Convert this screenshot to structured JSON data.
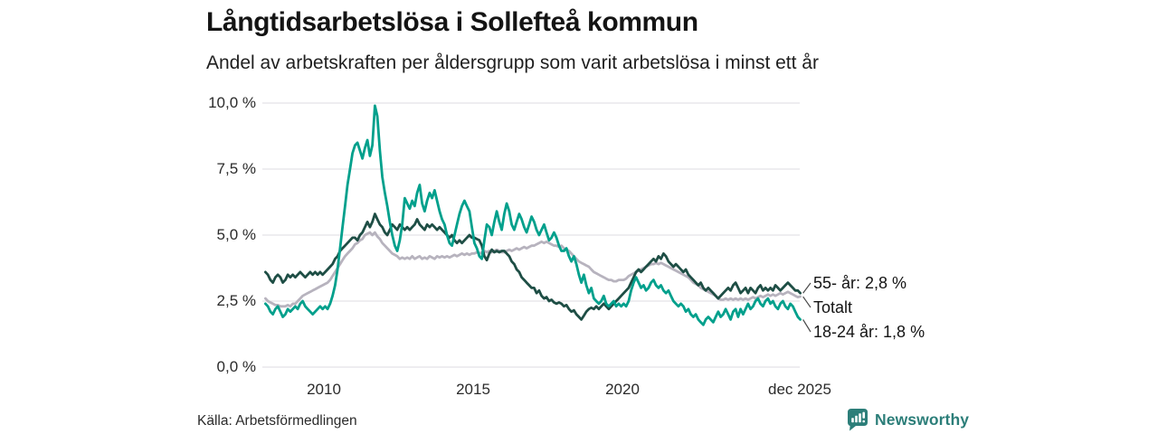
{
  "header": {
    "title": "Långtidsarbetslösa i Sollefteå kommun",
    "subtitle": "Andel av arbetskraften per åldersgrupp som varit arbetslösa i minst ett år"
  },
  "footer": {
    "source": "Källa: Arbetsförmedlingen",
    "brand": "Newsworthy"
  },
  "colors": {
    "teal": "#00a08c",
    "dark_green": "#1e4e45",
    "gray": "#b7b3be",
    "gridline": "#e4e2e6",
    "leader": "#4a4a4a",
    "brand_teal": "#2c7e79"
  },
  "chart_data": {
    "type": "line",
    "title": "Långtidsarbetslösa i Sollefteå kommun",
    "subtitle": "Andel av arbetskraften per åldersgrupp som varit arbetslösa i minst ett år",
    "unit": "%",
    "x_start": 2008.042,
    "x_step": 0.08333,
    "xlim": [
      2007.94,
      2026.0
    ],
    "ylim": [
      0,
      10
    ],
    "grid": true,
    "legend_position": "end-of-line-labels",
    "x_ticks": [
      {
        "value": 2010,
        "label": "2010"
      },
      {
        "value": 2015,
        "label": "2015"
      },
      {
        "value": 2020,
        "label": "2020"
      },
      {
        "value": 2025.917,
        "label": "dec 2025"
      }
    ],
    "y_ticks": [
      {
        "value": 10,
        "label": "10,0 %"
      },
      {
        "value": 7.5,
        "label": "7,5 %"
      },
      {
        "value": 5,
        "label": "5,0 %"
      },
      {
        "value": 2.5,
        "label": "2,5 %"
      },
      {
        "value": 0,
        "label": "0,0 %"
      }
    ],
    "series": [
      {
        "name": "Totalt",
        "color": "#b7b3be",
        "end_label": "Totalt",
        "end_value": 2.67,
        "values": [
          2.6,
          2.5,
          2.45,
          2.4,
          2.35,
          2.35,
          2.3,
          2.3,
          2.3,
          2.35,
          2.3,
          2.4,
          2.4,
          2.5,
          2.6,
          2.7,
          2.75,
          2.8,
          2.85,
          2.9,
          2.95,
          3.0,
          3.05,
          3.1,
          3.15,
          3.2,
          3.3,
          3.45,
          3.6,
          3.75,
          3.9,
          4.05,
          4.2,
          4.3,
          4.4,
          4.5,
          4.65,
          4.7,
          4.8,
          4.85,
          5.0,
          5.05,
          5.1,
          5.0,
          5.1,
          4.95,
          4.85,
          4.7,
          4.6,
          4.5,
          4.4,
          4.3,
          4.25,
          4.2,
          4.1,
          4.15,
          4.1,
          4.15,
          4.1,
          4.2,
          4.1,
          4.15,
          4.2,
          4.1,
          4.15,
          4.1,
          4.2,
          4.15,
          4.1,
          4.2,
          4.15,
          4.2,
          4.15,
          4.2,
          4.15,
          4.2,
          4.25,
          4.2,
          4.25,
          4.3,
          4.25,
          4.3,
          4.25,
          4.3,
          4.3,
          4.35,
          4.3,
          4.35,
          4.4,
          4.35,
          4.4,
          4.35,
          4.4,
          4.45,
          4.4,
          4.35,
          4.35,
          4.4,
          4.45,
          4.4,
          4.45,
          4.5,
          4.45,
          4.5,
          4.55,
          4.5,
          4.55,
          4.6,
          4.6,
          4.65,
          4.7,
          4.75,
          4.7,
          4.75,
          4.7,
          4.65,
          4.6,
          4.6,
          4.55,
          4.6,
          4.5,
          4.45,
          4.4,
          4.3,
          4.2,
          4.1,
          4.0,
          3.95,
          3.9,
          3.85,
          3.8,
          3.7,
          3.6,
          3.55,
          3.5,
          3.45,
          3.4,
          3.35,
          3.3,
          3.3,
          3.25,
          3.25,
          3.3,
          3.3,
          3.3,
          3.35,
          3.45,
          3.5,
          3.55,
          3.6,
          3.65,
          3.7,
          3.75,
          3.8,
          3.85,
          3.9,
          3.9,
          3.95,
          3.9,
          3.95,
          3.9,
          3.85,
          3.8,
          3.75,
          3.7,
          3.65,
          3.6,
          3.55,
          3.5,
          3.45,
          3.4,
          3.3,
          3.2,
          3.15,
          3.1,
          3.0,
          2.95,
          2.9,
          2.85,
          2.8,
          2.75,
          2.7,
          2.6,
          2.55,
          2.55,
          2.6,
          2.55,
          2.6,
          2.55,
          2.6,
          2.55,
          2.6,
          2.55,
          2.6,
          2.55,
          2.6,
          2.65,
          2.6,
          2.65,
          2.7,
          2.65,
          2.7,
          2.75,
          2.7,
          2.75,
          2.7,
          2.75,
          2.8,
          2.75,
          2.8,
          2.85,
          2.8,
          2.75,
          2.7,
          2.65,
          2.67
        ]
      },
      {
        "name": "55- år",
        "color": "#1e4e45",
        "end_label": "55- år: 2,8 %",
        "end_value": 2.8,
        "values": [
          3.6,
          3.5,
          3.3,
          3.2,
          3.4,
          3.5,
          3.4,
          3.2,
          3.3,
          3.5,
          3.4,
          3.5,
          3.4,
          3.5,
          3.6,
          3.5,
          3.4,
          3.5,
          3.6,
          3.5,
          3.6,
          3.5,
          3.6,
          3.5,
          3.6,
          3.7,
          3.8,
          3.9,
          4.1,
          4.2,
          4.4,
          4.5,
          4.6,
          4.7,
          4.8,
          4.9,
          4.9,
          4.8,
          5.0,
          5.1,
          5.3,
          5.5,
          5.3,
          5.5,
          5.8,
          5.6,
          5.4,
          5.3,
          5.1,
          5.0,
          5.2,
          5.4,
          5.3,
          5.2,
          5.4,
          5.3,
          5.2,
          5.3,
          5.2,
          5.3,
          5.4,
          5.6,
          5.4,
          5.3,
          5.2,
          5.4,
          5.3,
          5.4,
          5.3,
          5.2,
          5.3,
          5.2,
          5.1,
          5.0,
          4.9,
          5.0,
          4.8,
          4.7,
          4.8,
          4.7,
          4.8,
          4.9,
          5.0,
          4.9,
          4.9,
          4.85,
          4.8,
          4.6,
          4.2,
          4.05,
          4.3,
          4.45,
          4.35,
          4.4,
          4.35,
          4.4,
          4.4,
          4.3,
          4.2,
          4.0,
          3.9,
          3.7,
          3.6,
          3.4,
          3.3,
          3.2,
          3.1,
          3.0,
          3.0,
          2.8,
          2.9,
          2.7,
          2.6,
          2.65,
          2.5,
          2.55,
          2.45,
          2.4,
          2.45,
          2.4,
          2.3,
          2.35,
          2.2,
          2.1,
          2.15,
          2.0,
          1.9,
          1.8,
          1.95,
          2.1,
          2.2,
          2.25,
          2.2,
          2.3,
          2.2,
          2.3,
          2.4,
          2.3,
          2.2,
          2.3,
          2.4,
          2.5,
          2.6,
          2.7,
          2.8,
          2.9,
          3.0,
          3.2,
          3.4,
          3.6,
          3.7,
          3.6,
          3.7,
          3.8,
          3.9,
          4.0,
          4.1,
          4.0,
          4.2,
          4.1,
          4.3,
          4.2,
          4.0,
          3.9,
          3.8,
          3.9,
          3.8,
          3.7,
          3.6,
          3.7,
          3.5,
          3.4,
          3.3,
          3.2,
          3.1,
          3.2,
          3.0,
          2.9,
          3.0,
          2.9,
          2.8,
          2.7,
          2.6,
          2.7,
          2.8,
          2.9,
          3.0,
          2.9,
          3.1,
          3.2,
          3.0,
          2.8,
          2.9,
          3.0,
          2.8,
          3.0,
          2.9,
          2.8,
          3.0,
          3.1,
          2.9,
          3.0,
          2.9,
          3.0,
          2.9,
          3.1,
          3.0,
          2.9,
          3.0,
          3.1,
          3.2,
          3.1,
          3.0,
          2.9,
          2.9,
          2.8
        ]
      },
      {
        "name": "18-24 år",
        "color": "#00a08c",
        "end_label": "18-24 år: 1,8 %",
        "end_value": 1.8,
        "values": [
          2.4,
          2.3,
          2.1,
          2.0,
          2.2,
          2.3,
          2.1,
          1.9,
          2.0,
          2.2,
          2.1,
          2.2,
          2.3,
          2.2,
          2.4,
          2.5,
          2.3,
          2.2,
          2.1,
          2.0,
          2.1,
          2.2,
          2.3,
          2.2,
          2.3,
          2.2,
          2.4,
          2.7,
          3.1,
          3.7,
          4.5,
          5.3,
          6.1,
          6.9,
          7.5,
          8.1,
          8.4,
          8.5,
          8.2,
          7.9,
          8.3,
          8.6,
          8.0,
          8.4,
          9.9,
          9.5,
          8.2,
          7.2,
          6.6,
          6.1,
          5.5,
          5.0,
          4.6,
          4.4,
          4.8,
          5.4,
          6.4,
          6.2,
          6.0,
          6.3,
          6.1,
          6.6,
          6.9,
          6.2,
          5.9,
          6.3,
          6.6,
          6.4,
          6.7,
          6.3,
          5.9,
          5.6,
          5.4,
          5.0,
          4.7,
          4.6,
          5.0,
          5.4,
          5.8,
          6.1,
          6.3,
          6.1,
          5.9,
          5.3,
          4.7,
          4.5,
          4.2,
          4.1,
          4.8,
          5.4,
          5.3,
          5.0,
          5.5,
          5.9,
          5.5,
          5.2,
          5.8,
          6.2,
          5.9,
          5.4,
          5.2,
          5.5,
          5.8,
          5.6,
          5.3,
          5.1,
          5.4,
          5.7,
          5.5,
          5.2,
          5.0,
          5.2,
          5.4,
          5.1,
          4.8,
          4.9,
          5.1,
          4.9,
          4.6,
          4.4,
          4.4,
          4.5,
          4.2,
          4.0,
          4.2,
          3.9,
          3.5,
          3.2,
          3.5,
          3.1,
          2.8,
          3.0,
          2.6,
          2.5,
          2.4,
          2.5,
          2.7,
          2.4,
          2.3,
          2.4,
          2.5,
          2.3,
          2.4,
          2.3,
          2.4,
          2.3,
          2.5,
          2.9,
          3.2,
          3.4,
          3.2,
          3.0,
          3.1,
          2.9,
          3.0,
          3.2,
          3.3,
          3.1,
          3.0,
          3.1,
          2.9,
          2.8,
          2.9,
          2.7,
          2.5,
          2.4,
          2.3,
          2.4,
          2.3,
          2.1,
          2.2,
          2.0,
          1.9,
          2.0,
          1.8,
          1.7,
          1.6,
          1.8,
          1.9,
          1.8,
          1.7,
          1.9,
          2.1,
          1.9,
          2.0,
          2.2,
          2.0,
          1.8,
          2.1,
          2.2,
          1.9,
          2.2,
          2.0,
          2.2,
          2.4,
          2.2,
          2.3,
          2.5,
          2.6,
          2.4,
          2.3,
          2.5,
          2.6,
          2.4,
          2.5,
          2.3,
          2.2,
          2.4,
          2.5,
          2.3,
          2.2,
          2.4,
          2.3,
          2.1,
          1.9,
          1.8
        ]
      }
    ]
  }
}
